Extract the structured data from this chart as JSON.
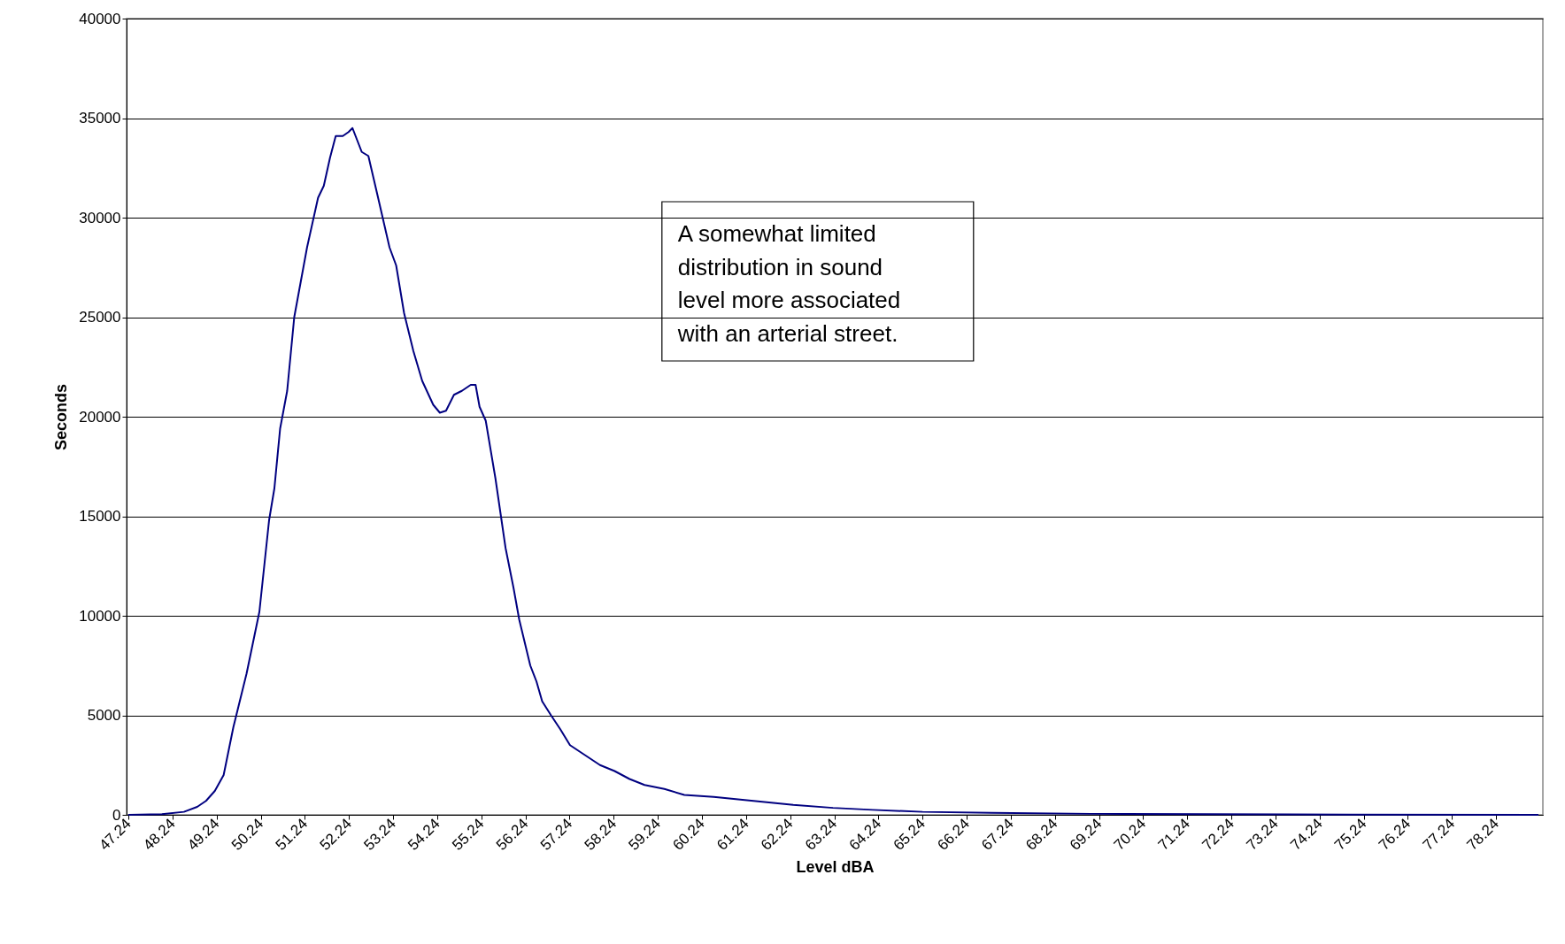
{
  "chart_data": {
    "type": "line",
    "xlabel": "Level dBA",
    "ylabel": "Seconds",
    "annotations": [
      "A somewhat limited\ndistribution in sound\nlevel more associated\nwith an arterial street."
    ],
    "x": [
      47.24,
      48.0,
      48.5,
      48.8,
      49.0,
      49.2,
      49.4,
      49.62,
      49.92,
      50.21,
      50.43,
      50.55,
      50.68,
      50.84,
      51.0,
      51.29,
      51.54,
      51.67,
      51.81,
      51.94,
      52.1,
      52.23,
      52.32,
      52.53,
      52.68,
      52.89,
      53.16,
      53.31,
      53.49,
      53.7,
      53.9,
      54.15,
      54.3,
      54.44,
      54.62,
      54.8,
      55.0,
      55.11,
      55.2,
      55.34,
      55.56,
      55.79,
      55.97,
      56.1,
      56.35,
      56.49,
      56.62,
      56.82,
      57.03,
      57.25,
      57.59,
      57.93,
      58.26,
      58.6,
      58.94,
      59.39,
      59.84,
      60.51,
      61.41,
      62.31,
      63.21,
      64.11,
      65.24,
      66.81,
      69.06,
      73.56,
      79.2
    ],
    "series": [
      {
        "color": "#000080",
        "values": [
          0,
          30,
          150,
          400,
          700,
          1200,
          2000,
          4400,
          7100,
          10200,
          14800,
          16400,
          19400,
          21300,
          25000,
          28500,
          31000,
          31600,
          33000,
          34100,
          34100,
          34300,
          34500,
          33300,
          33100,
          31100,
          28500,
          27600,
          25200,
          23300,
          21800,
          20600,
          20200,
          20300,
          21100,
          21300,
          21600,
          21600,
          20500,
          19800,
          16900,
          13400,
          11400,
          9800,
          7500,
          6700,
          5700,
          5000,
          4300,
          3500,
          3000,
          2500,
          2200,
          1800,
          1500,
          1300,
          1000,
          900,
          700,
          500,
          350,
          250,
          150,
          100,
          50,
          20,
          0
        ]
      }
    ],
    "xlim": [
      47.2,
      79.3
    ],
    "xticks": [
      47.24,
      48.24,
      49.24,
      50.24,
      51.24,
      52.24,
      53.24,
      54.24,
      55.24,
      56.24,
      57.24,
      58.24,
      59.24,
      60.24,
      61.24,
      62.24,
      63.24,
      64.24,
      65.24,
      66.24,
      67.24,
      68.24,
      69.24,
      70.24,
      71.24,
      72.24,
      73.24,
      74.24,
      75.24,
      76.24,
      77.24,
      78.24
    ],
    "ylim": [
      0,
      40000
    ],
    "yticks": [
      0,
      5000,
      10000,
      15000,
      20000,
      25000,
      30000,
      35000,
      40000
    ],
    "grid": "y",
    "line_style": "solid",
    "marker": "none"
  }
}
